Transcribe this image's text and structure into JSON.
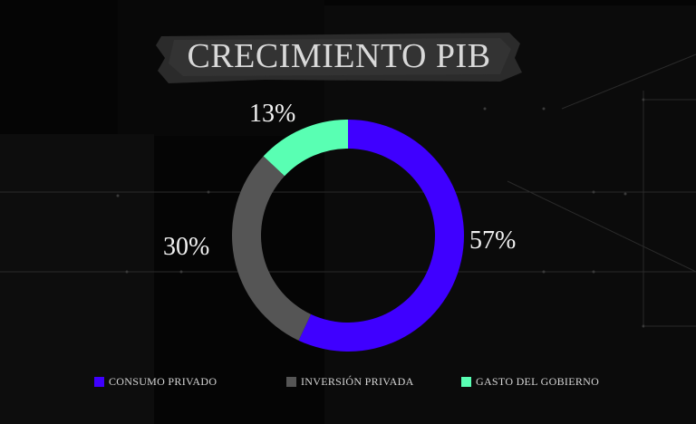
{
  "title": "CRECIMIENTO PIB",
  "colors": {
    "consumo": "#3f00ff",
    "inversion": "#555555",
    "gasto": "#59ffb3"
  },
  "chart_data": {
    "type": "pie",
    "variant": "donut",
    "title": "CRECIMIENTO PIB",
    "categories": [
      "CONSUMO PRIVADO",
      "INVERSIÓN PRIVADA",
      "GASTO DEL GOBIERNO"
    ],
    "values": [
      57,
      30,
      13
    ],
    "labels": [
      "57%",
      "30%",
      "13%"
    ],
    "colors": [
      "#3f00ff",
      "#555555",
      "#59ffb3"
    ],
    "legend_position": "bottom"
  }
}
